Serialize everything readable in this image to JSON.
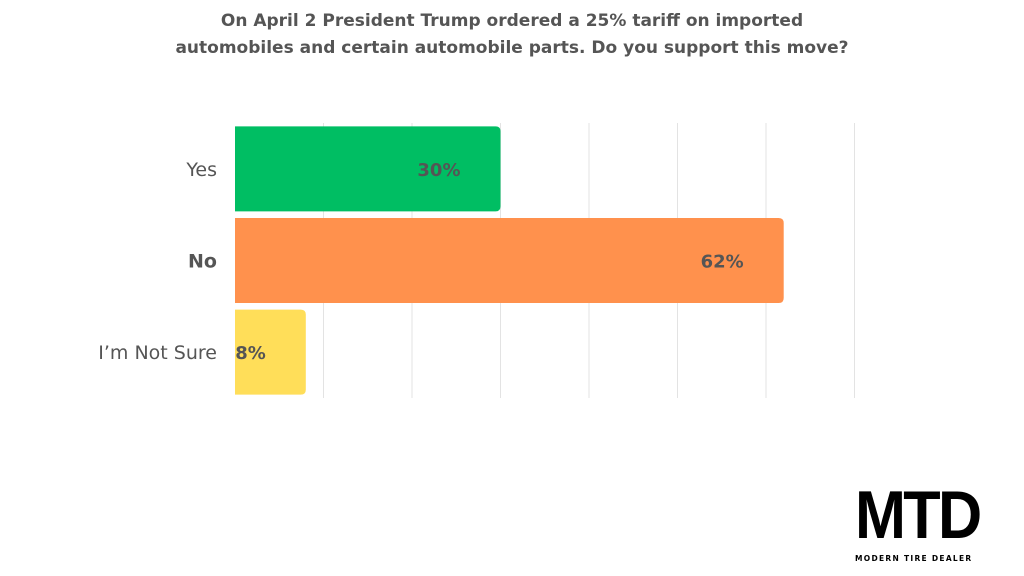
{
  "chart_data": {
    "type": "bar",
    "orientation": "horizontal",
    "title_line1": "On April 2 President Trump ordered a 25% tariff on imported",
    "title_line2": "automobiles and certain automobile parts. Do you support this move?",
    "categories": [
      "Yes",
      "No",
      "I’m Not Sure"
    ],
    "values": [
      30,
      62,
      8
    ],
    "data_labels": [
      "30%",
      "62%",
      "8%"
    ],
    "colors": [
      "#00BE63",
      "#FF914D",
      "#FFDE59"
    ],
    "bold_category": "No",
    "xlim": [
      0,
      70
    ],
    "grid": true,
    "xlabel": "",
    "ylabel": ""
  },
  "logo": {
    "main": "MTD",
    "sub": "MODERN TIRE DEALER"
  }
}
